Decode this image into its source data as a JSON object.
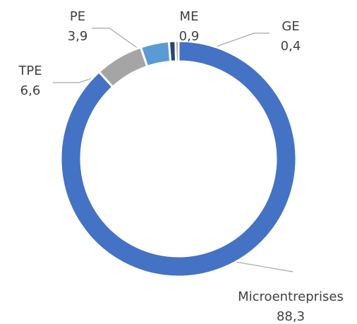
{
  "chart_data": {
    "type": "donut",
    "categories": [
      "Microentreprises",
      "TPE",
      "PE",
      "ME",
      "GE"
    ],
    "values": [
      88.3,
      6.6,
      3.9,
      0.9,
      0.4
    ],
    "value_labels": [
      "88,3",
      "6,6",
      "3,9",
      "0,9",
      "0,4"
    ],
    "colors": [
      "#4472c4",
      "#a5a5a5",
      "#5b9bd5",
      "#264478",
      "#636363"
    ]
  }
}
